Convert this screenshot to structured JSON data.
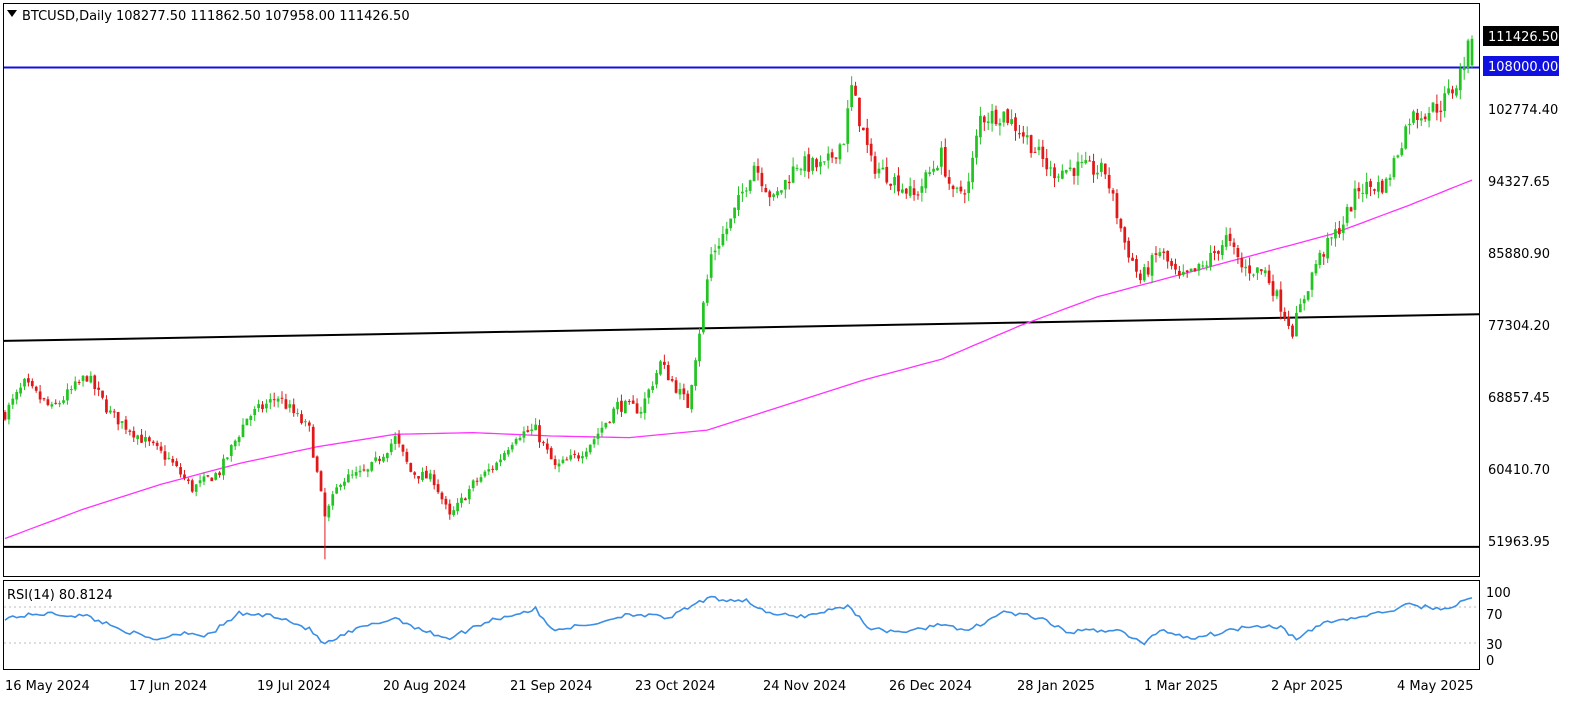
{
  "header": {
    "symbol_label": "BTCUSD,Daily",
    "ohlc": "108277.50 111862.50 107958.00 111426.50"
  },
  "price_scale": {
    "ticks": [
      "102774.40",
      "94327.65",
      "85880.90",
      "77304.20",
      "68857.45",
      "60410.70",
      "51963.95"
    ],
    "last_price_label": "111426.50",
    "hline_label": "108000.00"
  },
  "rsi": {
    "label": "RSI(14) 80.8124",
    "levels": [
      "100",
      "70",
      "30",
      "0"
    ]
  },
  "time_axis": [
    "16 May 2024",
    "17 Jun 2024",
    "19 Jul 2024",
    "20 Aug 2024",
    "21 Sep 2024",
    "23 Oct 2024",
    "24 Nov 2024",
    "26 Dec 2024",
    "28 Jan 2025",
    "1 Mar 2025",
    "2 Apr 2025",
    "4 May 2025"
  ],
  "colors": {
    "bull": "#22c422",
    "bear": "#e01818",
    "ma": "#ff33ff",
    "hline": "#1010e0",
    "trendline": "#000000",
    "rsi_line": "#3a8ee6",
    "axis_text": "#000000"
  },
  "chart_data": {
    "type": "candlestick",
    "title": "BTCUSD,Daily",
    "price_range": [
      47000,
      115500
    ],
    "x_range_days": [
      0,
      376
    ],
    "last_price": 111426.5,
    "horizontal_line": 108000,
    "support_line": 50500,
    "trendline_points": [
      {
        "day": 0,
        "price": 75200
      },
      {
        "day": 376,
        "price": 78400
      }
    ],
    "ma_points": [
      {
        "day": 0,
        "price": 51500
      },
      {
        "day": 20,
        "price": 55000
      },
      {
        "day": 40,
        "price": 58000
      },
      {
        "day": 60,
        "price": 60500
      },
      {
        "day": 80,
        "price": 62500
      },
      {
        "day": 100,
        "price": 64000
      },
      {
        "day": 120,
        "price": 64200
      },
      {
        "day": 140,
        "price": 63800
      },
      {
        "day": 160,
        "price": 63600
      },
      {
        "day": 180,
        "price": 64500
      },
      {
        "day": 200,
        "price": 67500
      },
      {
        "day": 220,
        "price": 70500
      },
      {
        "day": 240,
        "price": 73000
      },
      {
        "day": 260,
        "price": 77000
      },
      {
        "day": 280,
        "price": 80500
      },
      {
        "day": 300,
        "price": 83000
      },
      {
        "day": 320,
        "price": 85500
      },
      {
        "day": 340,
        "price": 88000
      },
      {
        "day": 360,
        "price": 91500
      },
      {
        "day": 376,
        "price": 94500
      }
    ],
    "price_anchors": [
      {
        "day": 0,
        "price": 66500
      },
      {
        "day": 5,
        "price": 70000
      },
      {
        "day": 12,
        "price": 67000
      },
      {
        "day": 21,
        "price": 71000
      },
      {
        "day": 27,
        "price": 66500
      },
      {
        "day": 35,
        "price": 63500
      },
      {
        "day": 42,
        "price": 61000
      },
      {
        "day": 48,
        "price": 57500
      },
      {
        "day": 55,
        "price": 59500
      },
      {
        "day": 62,
        "price": 66000
      },
      {
        "day": 70,
        "price": 68500
      },
      {
        "day": 78,
        "price": 64500
      },
      {
        "day": 82,
        "price": 54000
      },
      {
        "day": 86,
        "price": 58500
      },
      {
        "day": 93,
        "price": 59500
      },
      {
        "day": 100,
        "price": 63500
      },
      {
        "day": 104,
        "price": 59500
      },
      {
        "day": 110,
        "price": 58500
      },
      {
        "day": 114,
        "price": 54000
      },
      {
        "day": 120,
        "price": 58000
      },
      {
        "day": 126,
        "price": 60500
      },
      {
        "day": 131,
        "price": 64000
      },
      {
        "day": 136,
        "price": 64500
      },
      {
        "day": 141,
        "price": 60000
      },
      {
        "day": 147,
        "price": 61500
      },
      {
        "day": 151,
        "price": 63500
      },
      {
        "day": 157,
        "price": 67500
      },
      {
        "day": 163,
        "price": 67000
      },
      {
        "day": 168,
        "price": 72500
      },
      {
        "day": 175,
        "price": 67500
      },
      {
        "day": 178,
        "price": 76500
      },
      {
        "day": 181,
        "price": 85500
      },
      {
        "day": 186,
        "price": 89500
      },
      {
        "day": 192,
        "price": 96500
      },
      {
        "day": 197,
        "price": 92000
      },
      {
        "day": 203,
        "price": 96500
      },
      {
        "day": 210,
        "price": 96000
      },
      {
        "day": 215,
        "price": 99500
      },
      {
        "day": 217,
        "price": 105500
      },
      {
        "day": 222,
        "price": 96500
      },
      {
        "day": 228,
        "price": 94500
      },
      {
        "day": 233,
        "price": 92500
      },
      {
        "day": 240,
        "price": 97500
      },
      {
        "day": 243,
        "price": 92500
      },
      {
        "day": 247,
        "price": 94000
      },
      {
        "day": 250,
        "price": 102000
      },
      {
        "day": 256,
        "price": 102500
      },
      {
        "day": 262,
        "price": 99500
      },
      {
        "day": 268,
        "price": 95500
      },
      {
        "day": 275,
        "price": 96000
      },
      {
        "day": 282,
        "price": 95500
      },
      {
        "day": 287,
        "price": 87000
      },
      {
        "day": 291,
        "price": 82500
      },
      {
        "day": 296,
        "price": 86000
      },
      {
        "day": 301,
        "price": 82500
      },
      {
        "day": 307,
        "price": 84000
      },
      {
        "day": 313,
        "price": 87500
      },
      {
        "day": 317,
        "price": 84000
      },
      {
        "day": 323,
        "price": 83500
      },
      {
        "day": 330,
        "price": 76500
      },
      {
        "day": 336,
        "price": 84500
      },
      {
        "day": 343,
        "price": 89500
      },
      {
        "day": 347,
        "price": 93500
      },
      {
        "day": 354,
        "price": 94000
      },
      {
        "day": 360,
        "price": 102000
      },
      {
        "day": 368,
        "price": 103500
      },
      {
        "day": 372,
        "price": 106000
      },
      {
        "day": 376,
        "price": 111426.5
      }
    ],
    "rsi_range": [
      0,
      100
    ],
    "rsi_levels": [
      70,
      30
    ],
    "rsi_last": 80.8124,
    "rsi_anchors": [
      {
        "day": 0,
        "rsi": 58
      },
      {
        "day": 10,
        "rsi": 63
      },
      {
        "day": 21,
        "rsi": 60
      },
      {
        "day": 30,
        "rsi": 45
      },
      {
        "day": 38,
        "rsi": 33
      },
      {
        "day": 46,
        "rsi": 42
      },
      {
        "day": 52,
        "rsi": 38
      },
      {
        "day": 60,
        "rsi": 63
      },
      {
        "day": 70,
        "rsi": 60
      },
      {
        "day": 78,
        "rsi": 45
      },
      {
        "day": 82,
        "rsi": 28
      },
      {
        "day": 90,
        "rsi": 45
      },
      {
        "day": 100,
        "rsi": 58
      },
      {
        "day": 108,
        "rsi": 42
      },
      {
        "day": 114,
        "rsi": 35
      },
      {
        "day": 124,
        "rsi": 55
      },
      {
        "day": 136,
        "rsi": 68
      },
      {
        "day": 140,
        "rsi": 45
      },
      {
        "day": 150,
        "rsi": 50
      },
      {
        "day": 160,
        "rsi": 63
      },
      {
        "day": 170,
        "rsi": 58
      },
      {
        "day": 180,
        "rsi": 80
      },
      {
        "day": 190,
        "rsi": 78
      },
      {
        "day": 196,
        "rsi": 62
      },
      {
        "day": 205,
        "rsi": 60
      },
      {
        "day": 216,
        "rsi": 72
      },
      {
        "day": 222,
        "rsi": 45
      },
      {
        "day": 232,
        "rsi": 42
      },
      {
        "day": 240,
        "rsi": 52
      },
      {
        "day": 246,
        "rsi": 42
      },
      {
        "day": 256,
        "rsi": 65
      },
      {
        "day": 265,
        "rsi": 58
      },
      {
        "day": 272,
        "rsi": 42
      },
      {
        "day": 285,
        "rsi": 45
      },
      {
        "day": 292,
        "rsi": 28
      },
      {
        "day": 296,
        "rsi": 45
      },
      {
        "day": 304,
        "rsi": 35
      },
      {
        "day": 312,
        "rsi": 42
      },
      {
        "day": 320,
        "rsi": 50
      },
      {
        "day": 327,
        "rsi": 48
      },
      {
        "day": 331,
        "rsi": 33
      },
      {
        "day": 338,
        "rsi": 53
      },
      {
        "day": 346,
        "rsi": 58
      },
      {
        "day": 354,
        "rsi": 65
      },
      {
        "day": 360,
        "rsi": 73
      },
      {
        "day": 368,
        "rsi": 68
      },
      {
        "day": 372,
        "rsi": 73
      },
      {
        "day": 376,
        "rsi": 80.8124
      }
    ]
  }
}
